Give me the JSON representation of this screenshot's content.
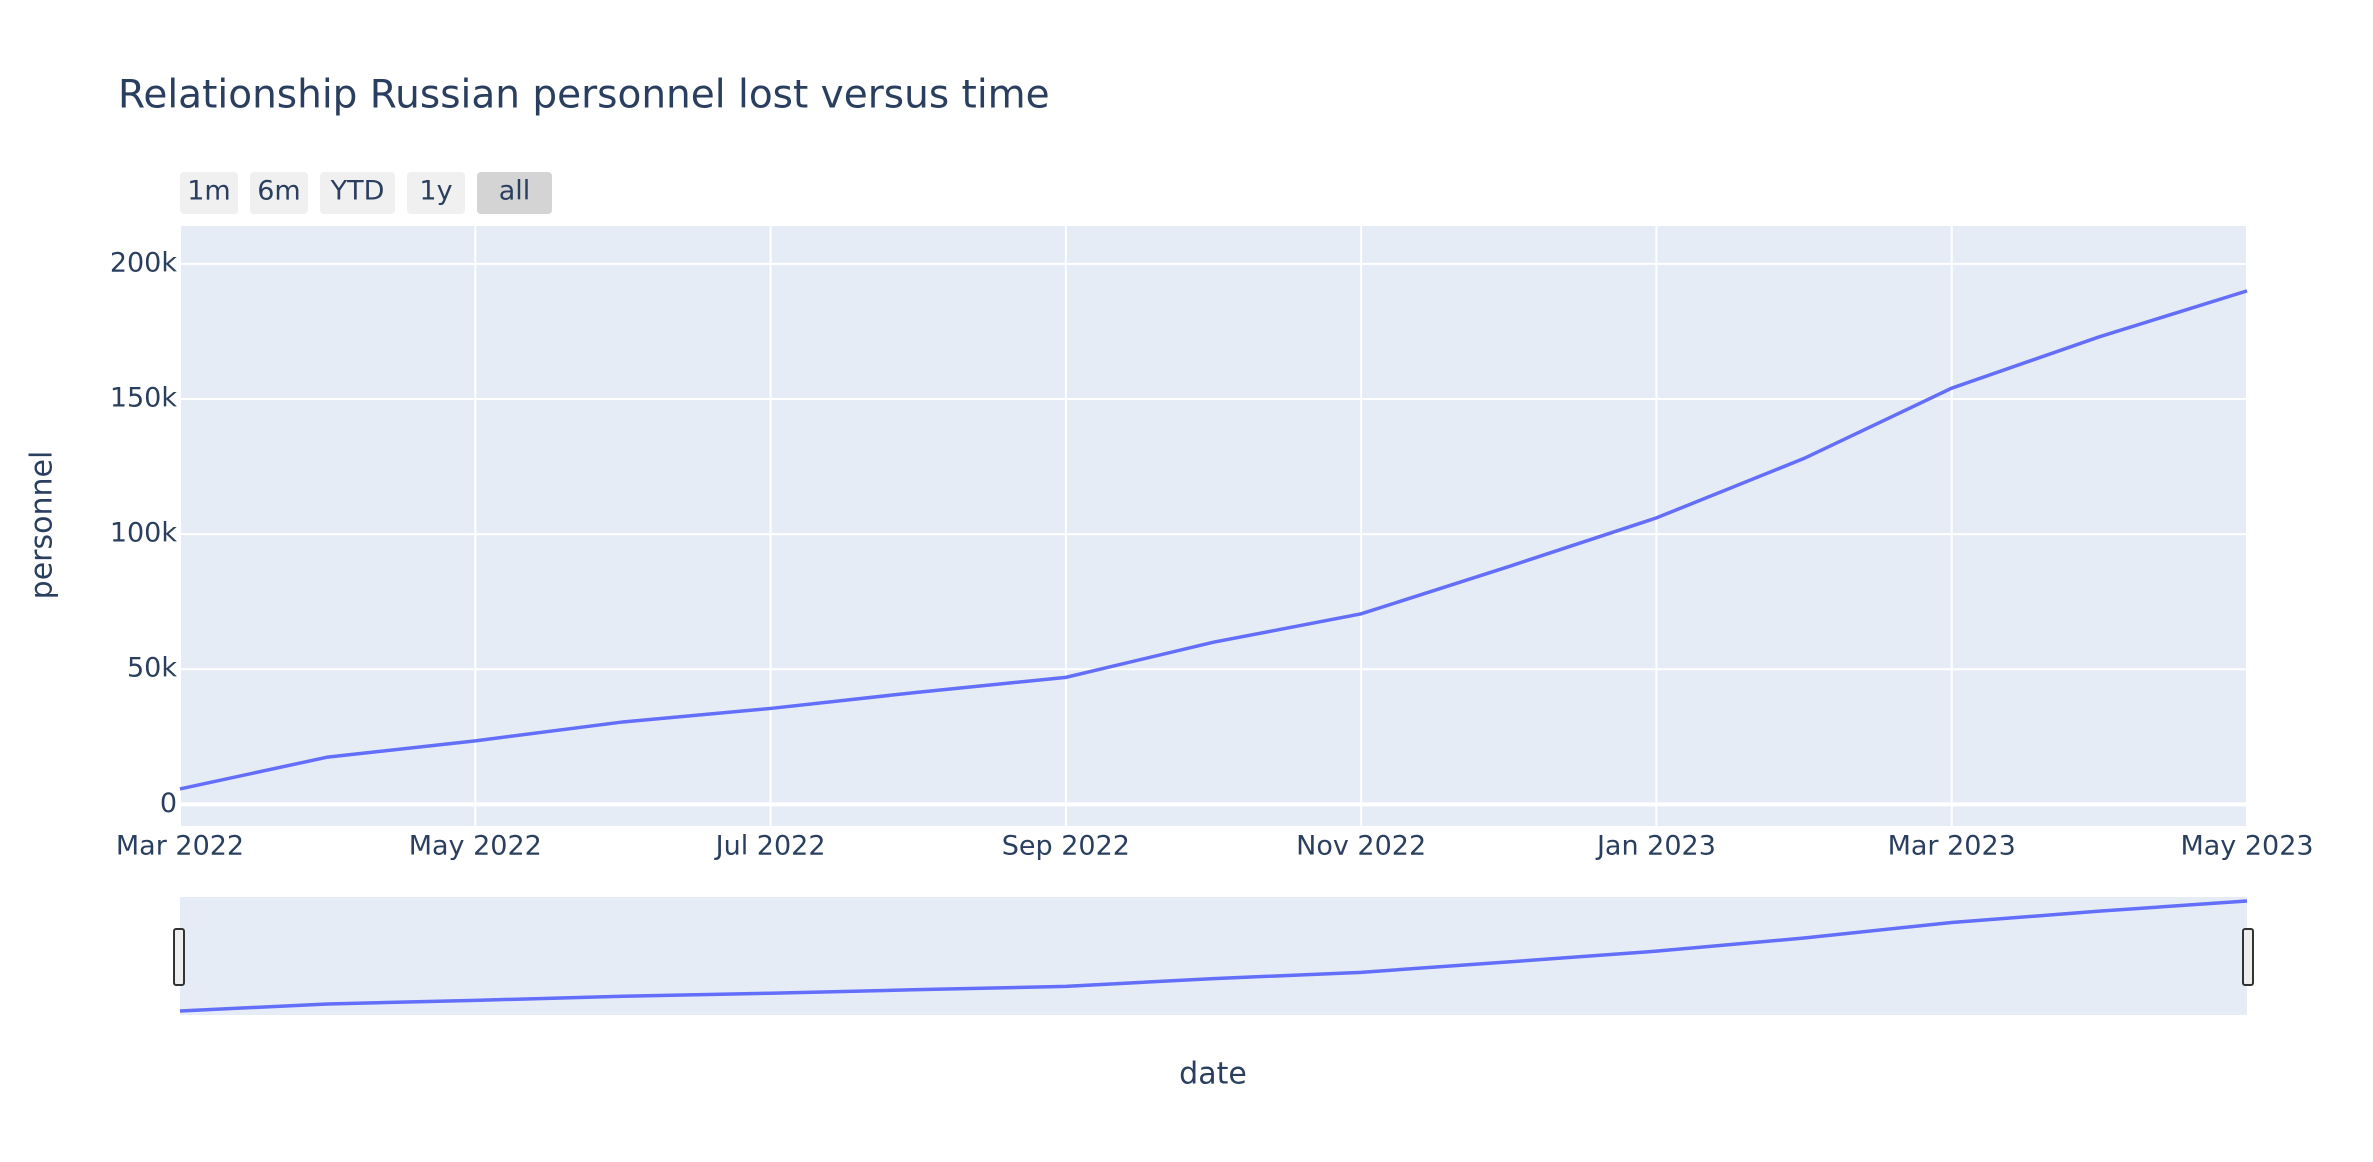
{
  "chart_data": {
    "type": "line",
    "title": "Relationship Russian personnel lost versus time",
    "x_label": "date",
    "y_label": "personnel",
    "range_selector": [
      "1m",
      "6m",
      "YTD",
      "1y",
      "all"
    ],
    "x": [
      "2022-03",
      "2022-04",
      "2022-05",
      "2022-06",
      "2022-07",
      "2022-08",
      "2022-09",
      "2022-10",
      "2022-11",
      "2022-12",
      "2023-01",
      "2023-02",
      "2023-03",
      "2023-04",
      "2023-05"
    ],
    "series": [
      {
        "name": "personnel",
        "color": "#636efa",
        "values": [
          5710,
          17500,
          23500,
          30500,
          35500,
          41500,
          47000,
          60000,
          70500,
          88000,
          106000,
          128000,
          154000,
          173000,
          190000
        ]
      }
    ],
    "xlim": [
      "2022-03",
      "2023-05"
    ],
    "xticks": [
      {
        "value": "2022-03",
        "label": "Mar 2022"
      },
      {
        "value": "2022-05",
        "label": "May 2022"
      },
      {
        "value": "2022-07",
        "label": "Jul 2022"
      },
      {
        "value": "2022-09",
        "label": "Sep 2022"
      },
      {
        "value": "2022-11",
        "label": "Nov 2022"
      },
      {
        "value": "2023-01",
        "label": "Jan 2023"
      },
      {
        "value": "2023-03",
        "label": "Mar 2023"
      },
      {
        "value": "2023-05",
        "label": "May 2023"
      }
    ],
    "ylim": [
      -8000,
      214000
    ],
    "yticks": [
      0,
      {
        "value": 50000,
        "label": "50k"
      },
      {
        "value": 100000,
        "label": "100k"
      },
      {
        "value": 150000,
        "label": "150k"
      },
      {
        "value": 200000,
        "label": "200k"
      }
    ],
    "grid": true
  }
}
